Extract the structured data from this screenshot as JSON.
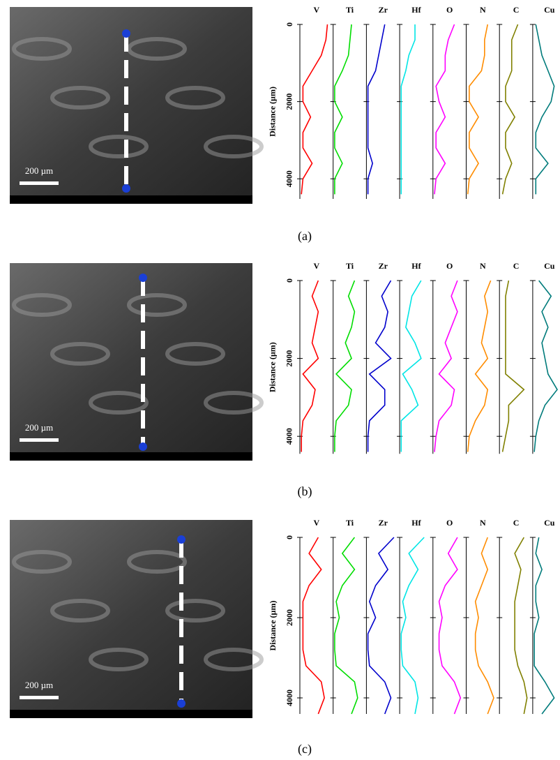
{
  "chart_data": [
    {
      "type": "line-profile",
      "panel_label": "(a)",
      "scale_bar": "200 µm",
      "y_label": "Distance (µm)",
      "ylim": [
        0,
        4520
      ],
      "yticks": [
        0,
        2000,
        4000
      ],
      "x": [
        0,
        400,
        800,
        1200,
        1600,
        2000,
        2400,
        2800,
        3200,
        3600,
        4000,
        4400
      ],
      "series": [
        {
          "name": "V",
          "color": "#ff0000",
          "values": [
            0.9,
            0.85,
            0.7,
            0.4,
            0.1,
            0.1,
            0.35,
            0.1,
            0.1,
            0.4,
            0.1,
            0.05
          ]
        },
        {
          "name": "Ti",
          "color": "#00dd00",
          "values": [
            0.6,
            0.55,
            0.5,
            0.3,
            0.05,
            0.05,
            0.3,
            0.05,
            0.05,
            0.3,
            0.05,
            0.05
          ]
        },
        {
          "name": "Zr",
          "color": "#0000cc",
          "values": [
            0.6,
            0.5,
            0.4,
            0.3,
            0.05,
            0.05,
            0.05,
            0.05,
            0.05,
            0.2,
            0.05,
            0.05
          ]
        },
        {
          "name": "Hf",
          "color": "#00e5e5",
          "values": [
            0.5,
            0.5,
            0.3,
            0.2,
            0.05,
            0.05,
            0.05,
            0.05,
            0.05,
            0.05,
            0.05,
            0.05
          ]
        },
        {
          "name": "O",
          "color": "#ff00ff",
          "values": [
            0.7,
            0.5,
            0.4,
            0.4,
            0.1,
            0.2,
            0.4,
            0.1,
            0.1,
            0.4,
            0.1,
            0.05
          ]
        },
        {
          "name": "N",
          "color": "#ff8c00",
          "values": [
            0.7,
            0.6,
            0.6,
            0.5,
            0.1,
            0.1,
            0.4,
            0.1,
            0.1,
            0.4,
            0.1,
            0.05
          ]
        },
        {
          "name": "C",
          "color": "#808000",
          "values": [
            0.6,
            0.4,
            0.4,
            0.4,
            0.2,
            0.2,
            0.5,
            0.2,
            0.2,
            0.4,
            0.2,
            0.1
          ]
        },
        {
          "name": "Cu",
          "color": "#007b7b",
          "values": [
            0.1,
            0.2,
            0.3,
            0.5,
            0.7,
            0.6,
            0.3,
            0.1,
            0.1,
            0.5,
            0.1,
            0.1
          ]
        }
      ]
    },
    {
      "type": "line-profile",
      "panel_label": "(b)",
      "scale_bar": "200 µm",
      "y_label": "Distance (µm)",
      "ylim": [
        0,
        4450
      ],
      "yticks": [
        0,
        2000,
        4000
      ],
      "x": [
        0,
        400,
        800,
        1200,
        1600,
        2000,
        2400,
        2800,
        3200,
        3600,
        4000,
        4400
      ],
      "series": [
        {
          "name": "V",
          "color": "#ff0000",
          "values": [
            0.6,
            0.4,
            0.6,
            0.5,
            0.4,
            0.6,
            0.1,
            0.5,
            0.4,
            0.1,
            0.05,
            0.05
          ]
        },
        {
          "name": "Ti",
          "color": "#00dd00",
          "values": [
            0.7,
            0.5,
            0.7,
            0.6,
            0.4,
            0.6,
            0.1,
            0.6,
            0.5,
            0.1,
            0.05,
            0.05
          ]
        },
        {
          "name": "Zr",
          "color": "#0000cc",
          "values": [
            0.8,
            0.5,
            0.7,
            0.6,
            0.3,
            0.8,
            0.1,
            0.6,
            0.6,
            0.1,
            0.05,
            0.05
          ]
        },
        {
          "name": "Hf",
          "color": "#00e5e5",
          "values": [
            0.7,
            0.4,
            0.3,
            0.2,
            0.5,
            0.7,
            0.1,
            0.4,
            0.6,
            0.05,
            0.05,
            0.05
          ]
        },
        {
          "name": "O",
          "color": "#ff00ff",
          "values": [
            0.8,
            0.6,
            0.8,
            0.6,
            0.4,
            0.6,
            0.2,
            0.7,
            0.6,
            0.2,
            0.1,
            0.05
          ]
        },
        {
          "name": "N",
          "color": "#ff8c00",
          "values": [
            0.8,
            0.6,
            0.7,
            0.6,
            0.5,
            0.7,
            0.3,
            0.7,
            0.6,
            0.3,
            0.1,
            0.05
          ]
        },
        {
          "name": "C",
          "color": "#808000",
          "values": [
            0.3,
            0.2,
            0.2,
            0.2,
            0.2,
            0.2,
            0.2,
            0.8,
            0.3,
            0.3,
            0.2,
            0.1
          ]
        },
        {
          "name": "Cu",
          "color": "#007b7b",
          "values": [
            0.2,
            0.6,
            0.3,
            0.5,
            0.3,
            0.4,
            0.5,
            0.8,
            0.4,
            0.2,
            0.1,
            0.05
          ]
        }
      ]
    },
    {
      "type": "line-profile",
      "panel_label": "(c)",
      "scale_bar": "200 µm",
      "y_label": "Distance (µm)",
      "ylim": [
        0,
        4400
      ],
      "yticks": [
        0,
        2000,
        4000
      ],
      "x": [
        0,
        400,
        800,
        1200,
        1600,
        2000,
        2400,
        2800,
        3200,
        3600,
        4000,
        4400
      ],
      "series": [
        {
          "name": "V",
          "color": "#ff0000",
          "values": [
            0.6,
            0.3,
            0.7,
            0.3,
            0.1,
            0.1,
            0.1,
            0.1,
            0.2,
            0.7,
            0.8,
            0.6
          ]
        },
        {
          "name": "Ti",
          "color": "#00dd00",
          "values": [
            0.7,
            0.3,
            0.7,
            0.3,
            0.1,
            0.2,
            0.05,
            0.05,
            0.1,
            0.7,
            0.8,
            0.6
          ]
        },
        {
          "name": "Zr",
          "color": "#0000cc",
          "values": [
            0.9,
            0.4,
            0.7,
            0.3,
            0.1,
            0.3,
            0.05,
            0.05,
            0.1,
            0.6,
            0.8,
            0.6
          ]
        },
        {
          "name": "Hf",
          "color": "#00e5e5",
          "values": [
            0.8,
            0.3,
            0.6,
            0.3,
            0.1,
            0.2,
            0.05,
            0.05,
            0.1,
            0.5,
            0.6,
            0.5
          ]
        },
        {
          "name": "O",
          "color": "#ff00ff",
          "values": [
            0.8,
            0.5,
            0.8,
            0.4,
            0.2,
            0.3,
            0.2,
            0.2,
            0.3,
            0.7,
            0.9,
            0.7
          ]
        },
        {
          "name": "N",
          "color": "#ff8c00",
          "values": [
            0.7,
            0.5,
            0.7,
            0.5,
            0.3,
            0.4,
            0.3,
            0.3,
            0.4,
            0.7,
            0.9,
            0.7
          ]
        },
        {
          "name": "C",
          "color": "#808000",
          "values": [
            0.8,
            0.5,
            0.7,
            0.6,
            0.5,
            0.5,
            0.5,
            0.5,
            0.6,
            0.8,
            0.9,
            0.8
          ]
        },
        {
          "name": "Cu",
          "color": "#007b7b",
          "values": [
            0.2,
            0.1,
            0.3,
            0.1,
            0.1,
            0.2,
            0.05,
            0.05,
            0.05,
            0.4,
            0.7,
            0.3
          ]
        }
      ]
    }
  ]
}
